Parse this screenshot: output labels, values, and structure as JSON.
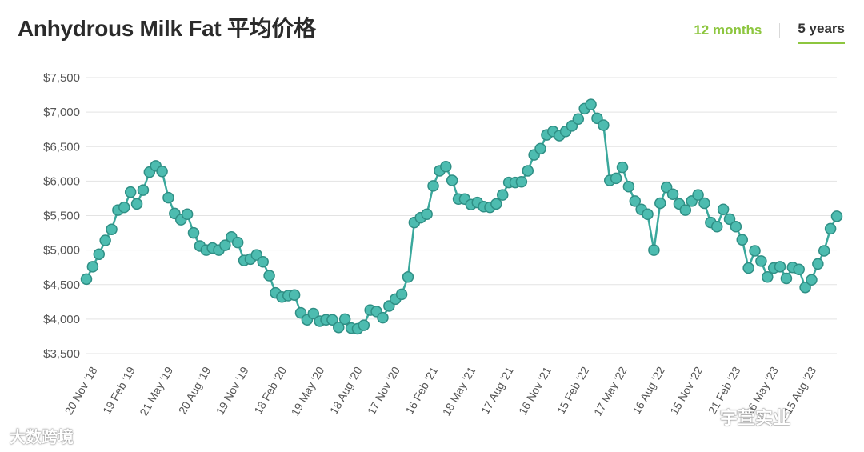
{
  "header": {
    "title": "Anhydrous Milk Fat 平均价格"
  },
  "tabs": [
    {
      "label": "12 months",
      "active": false
    },
    {
      "label": "5 years",
      "active": true
    }
  ],
  "watermarks": {
    "left": "大数跨境",
    "right": "宇萱实业"
  },
  "colors": {
    "line": "#3aa89c",
    "marker": "#4dbcb0",
    "accent": "#8dc63f",
    "grid": "#e3e3e3"
  },
  "chart_data": {
    "type": "line",
    "title": "Anhydrous Milk Fat 平均价格",
    "xlabel": "",
    "ylabel": "",
    "ylim": [
      3500,
      7500
    ],
    "yticks": [
      3500,
      4000,
      4500,
      5000,
      5500,
      6000,
      6500,
      7000,
      7500
    ],
    "ytick_labels": [
      "$3,500",
      "$4,000",
      "$4,500",
      "$5,000",
      "$5,500",
      "$6,000",
      "$6,500",
      "$7,000",
      "$7,500"
    ],
    "grid": true,
    "xtick_labels": [
      {
        "i": 0,
        "label": "20 Nov '18"
      },
      {
        "i": 6,
        "label": "19 Feb '19"
      },
      {
        "i": 12,
        "label": "21 May '19"
      },
      {
        "i": 18,
        "label": "20 Aug '19"
      },
      {
        "i": 24,
        "label": "19 Nov '19"
      },
      {
        "i": 30,
        "label": "18 Feb '20"
      },
      {
        "i": 36,
        "label": "19 May '20"
      },
      {
        "i": 42,
        "label": "18 Aug '20"
      },
      {
        "i": 48,
        "label": "17 Nov '20"
      },
      {
        "i": 54,
        "label": "16 Feb '21"
      },
      {
        "i": 60,
        "label": "18 May '21"
      },
      {
        "i": 66,
        "label": "17 Aug '21"
      },
      {
        "i": 72,
        "label": "16 Nov '21"
      },
      {
        "i": 78,
        "label": "15 Feb '22"
      },
      {
        "i": 84,
        "label": "17 May '22"
      },
      {
        "i": 90,
        "label": "16 Aug '22"
      },
      {
        "i": 96,
        "label": "15 Nov '22"
      },
      {
        "i": 102,
        "label": "21 Feb '23"
      },
      {
        "i": 108,
        "label": "16 May '23"
      },
      {
        "i": 114,
        "label": "15 Aug '23"
      }
    ],
    "series": [
      {
        "values": [
          4580,
          4760,
          4940,
          5140,
          5300,
          5580,
          5620,
          5840,
          5670,
          5870,
          6130,
          6220,
          6140,
          5760,
          5530,
          5440,
          5520,
          5250,
          5060,
          5000,
          5030,
          5000,
          5070,
          5190,
          5110,
          4850,
          4870,
          4930,
          4830,
          4630,
          4380,
          4320,
          4340,
          4350,
          4090,
          3990,
          4080,
          3970,
          3990,
          3990,
          3880,
          4000,
          3870,
          3860,
          3910,
          4130,
          4110,
          4020,
          4190,
          4290,
          4360,
          4610,
          5400,
          5470,
          5520,
          5930,
          6150,
          6210,
          6010,
          5740,
          5740,
          5660,
          5690,
          5630,
          5620,
          5670,
          5800,
          5980,
          5980,
          5990,
          6150,
          6380,
          6470,
          6670,
          6720,
          6660,
          6720,
          6800,
          6900,
          7050,
          7110,
          6910,
          6810,
          6010,
          6040,
          6200,
          5920,
          5710,
          5590,
          5520,
          5000,
          5680,
          5910,
          5810,
          5670,
          5580,
          5710,
          5800,
          5680,
          5400,
          5340,
          5590,
          5450,
          5340,
          5150,
          4740,
          4990,
          4840,
          4610,
          4740,
          4760,
          4590,
          4750,
          4720,
          4460,
          4570,
          4800,
          4990,
          5310,
          5490
        ]
      }
    ]
  }
}
